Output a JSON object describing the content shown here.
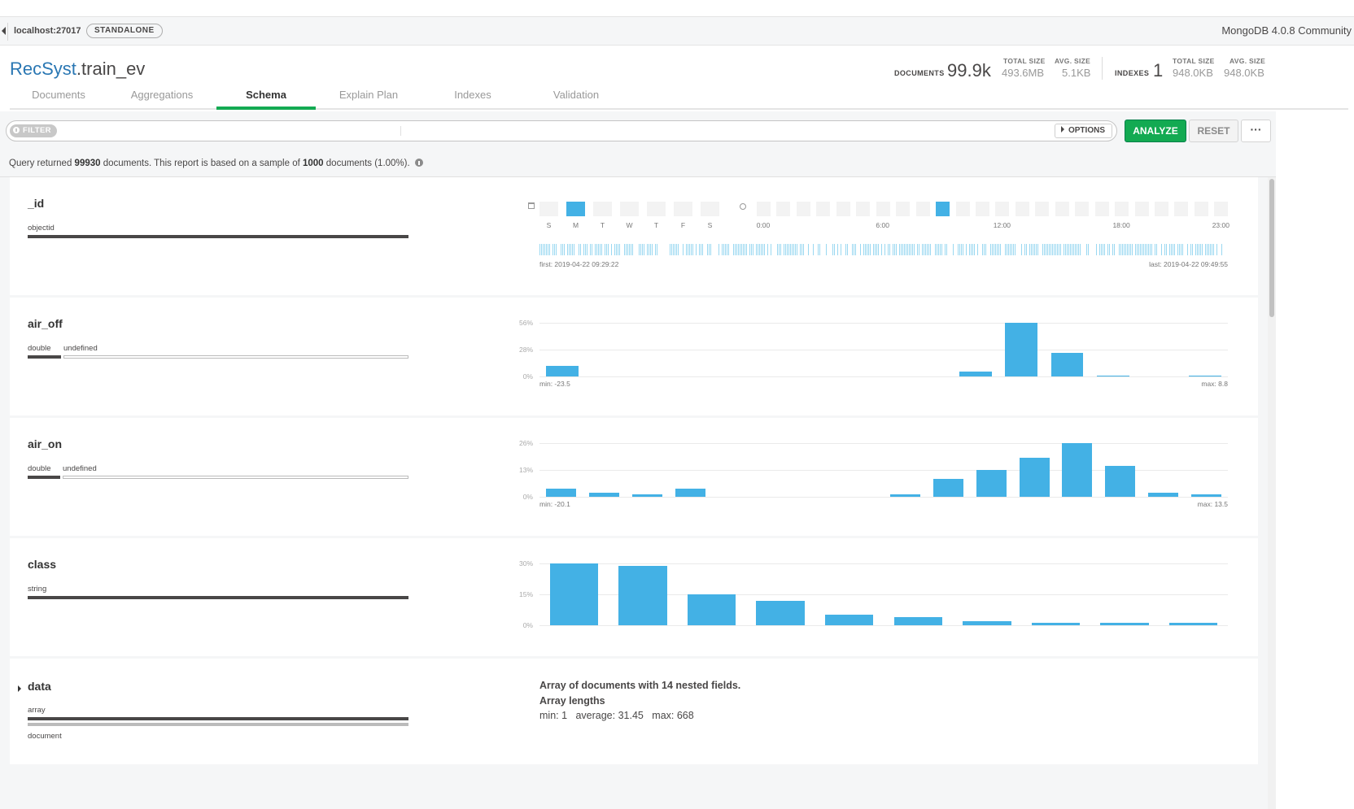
{
  "connection": {
    "host": "localhost:27017",
    "topology": "STANDALONE",
    "server_version": "MongoDB 4.0.8 Community"
  },
  "collection": {
    "db": "RecSyst",
    "name": ".train_ev",
    "documents_label": "DOCUMENTS",
    "documents_value": "99.9k",
    "total_size_label": "TOTAL SIZE",
    "total_size_value": "493.6MB",
    "avg_size_label": "AVG. SIZE",
    "avg_size_value": "5.1KB",
    "indexes_label": "INDEXES",
    "indexes_value": "1",
    "idx_total_size_label": "TOTAL SIZE",
    "idx_total_size_value": "948.0KB",
    "idx_avg_size_label": "AVG. SIZE",
    "idx_avg_size_value": "948.0KB"
  },
  "tabs": [
    "Documents",
    "Aggregations",
    "Schema",
    "Explain Plan",
    "Indexes",
    "Validation"
  ],
  "active_tab": "Schema",
  "query_bar": {
    "filter_label": "FILTER",
    "filter_value": "",
    "options_label": "OPTIONS",
    "analyze_label": "ANALYZE",
    "reset_label": "RESET",
    "more_label": "···"
  },
  "summary": {
    "prefix": "Query returned ",
    "count": "99930",
    "middle": " documents. This report is based on a sample of ",
    "sample": "1000",
    "suffix": " documents (1.00%)."
  },
  "fields": {
    "_id": {
      "name": "_id",
      "type": "objectid",
      "weekdays": [
        "S",
        "M",
        "T",
        "W",
        "T",
        "F",
        "S"
      ],
      "weekday_active": 1,
      "hour_labels": [
        "0:00",
        "6:00",
        "12:00",
        "18:00",
        "23:00"
      ],
      "hour_active": 9,
      "first": "first: 2019-04-22 09:29:22",
      "last": "last: 2019-04-22 09:49:55"
    },
    "air_off": {
      "name": "air_off",
      "types": [
        "double",
        "undefined"
      ],
      "chart_data": {
        "type": "bar",
        "y_ticks": [
          "56%",
          "28%",
          "0%"
        ],
        "ylim": [
          0,
          56
        ],
        "values": [
          11,
          0,
          0,
          0,
          0,
          0,
          0,
          0,
          0,
          5,
          56,
          25,
          1,
          0,
          1
        ],
        "min_label": "min: -23.5",
        "max_label": "max: 8.8"
      }
    },
    "air_on": {
      "name": "air_on",
      "types": [
        "double",
        "undefined"
      ],
      "chart_data": {
        "type": "bar",
        "y_ticks": [
          "26%",
          "13%",
          "0%"
        ],
        "ylim": [
          0,
          26
        ],
        "values": [
          4,
          2,
          1,
          4,
          0,
          0,
          0,
          0,
          1,
          8.5,
          13,
          19,
          26,
          15,
          2,
          1
        ],
        "min_label": "min: -20.1",
        "max_label": "max: 13.5"
      }
    },
    "class": {
      "name": "class",
      "type": "string",
      "chart_data": {
        "type": "bar",
        "y_ticks": [
          "30%",
          "15%",
          "0%"
        ],
        "ylim": [
          0,
          30
        ],
        "values": [
          30,
          29,
          15,
          12,
          5,
          4,
          2,
          1.2,
          1.2,
          1.2
        ]
      }
    },
    "data": {
      "name": "data",
      "types": [
        "array",
        "document"
      ],
      "array_desc": "Array of documents with 14 nested fields.",
      "array_lengths_label": "Array lengths",
      "array_stats": "min: 1   average: 31.45   max: 668"
    }
  },
  "colors": {
    "bar": "#43b1e5",
    "accent": "#13aa52",
    "db_link": "#2a77b3"
  }
}
